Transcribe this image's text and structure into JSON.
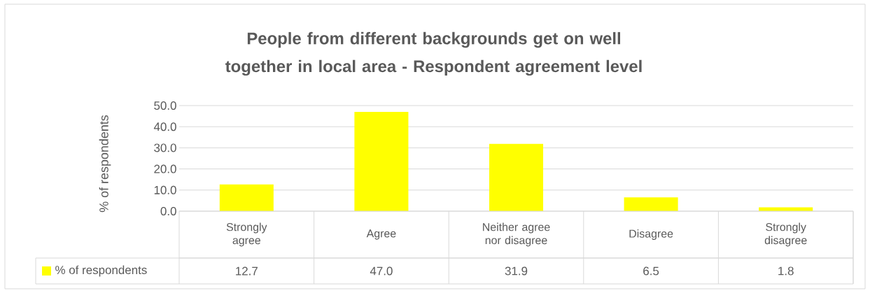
{
  "chart_data": {
    "type": "bar",
    "title": "People from different backgrounds get on well together in local area - Respondent agreement level",
    "ylabel": "% of respondents",
    "categories": [
      "Strongly agree",
      "Agree",
      "Neither agree nor disagree",
      "Disagree",
      "Strongly disagree"
    ],
    "series": [
      {
        "name": "% of respondents",
        "color": "#ffff00",
        "values": [
          12.7,
          47.0,
          31.9,
          6.5,
          1.8
        ],
        "value_labels": [
          "12.7",
          "47.0",
          "31.9",
          "6.5",
          "1.8"
        ]
      }
    ],
    "ylim": [
      0,
      50
    ],
    "yticks": [
      {
        "value": 0,
        "label": "0.0"
      },
      {
        "value": 10,
        "label": "10.0"
      },
      {
        "value": 20,
        "label": "20.0"
      },
      {
        "value": 30,
        "label": "30.0"
      },
      {
        "value": 40,
        "label": "40.0"
      },
      {
        "value": 50,
        "label": "50.0"
      }
    ],
    "grid": "y",
    "legend": "bottom"
  }
}
